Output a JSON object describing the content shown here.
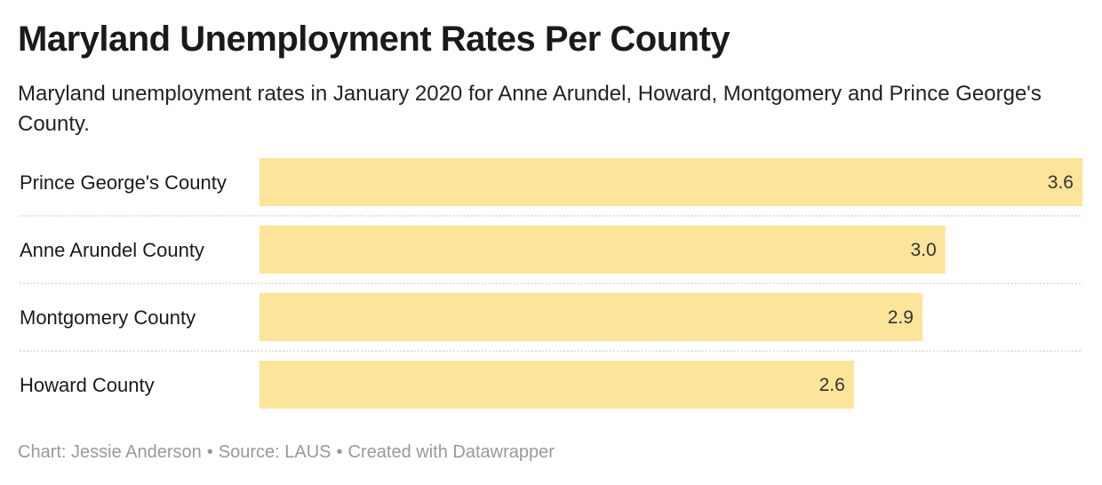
{
  "header": {
    "title": "Maryland Unemployment Rates Per County",
    "subtitle": "Maryland unemployment rates in January 2020 for Anne Arundel, Howard, Montgomery and Prince George's County."
  },
  "chart_data": {
    "type": "bar",
    "orientation": "horizontal",
    "categories": [
      "Prince George's County",
      "Anne Arundel County",
      "Montgomery County",
      "Howard County"
    ],
    "values": [
      3.6,
      3.0,
      2.9,
      2.6
    ],
    "value_labels": [
      "3.6",
      "3.0",
      "2.9",
      "2.6"
    ],
    "xlim": [
      0,
      3.6
    ],
    "bar_color": "#fde49b",
    "separator_color": "#d9d9d9",
    "grid": false
  },
  "footer": {
    "credit": "Chart: Jessie Anderson",
    "source": "Source: LAUS",
    "tool": "Created with Datawrapper",
    "separator": "•"
  }
}
